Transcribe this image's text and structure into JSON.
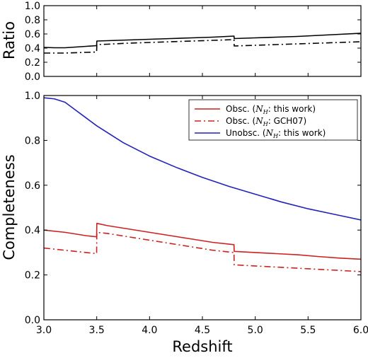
{
  "figure": {
    "xlabel": "Redshift",
    "x_ticks": [
      "3.0",
      "3.5",
      "4.0",
      "4.5",
      "5.0",
      "5.5",
      "6.0"
    ]
  },
  "chart_data": [
    {
      "type": "line",
      "panel": "top",
      "title": "",
      "xlabel": "Redshift",
      "ylabel": "Ratio",
      "xlim": [
        3.0,
        6.0
      ],
      "ylim": [
        0.0,
        1.0
      ],
      "y_ticks": [
        "0.0",
        "0.2",
        "0.4",
        "0.6",
        "0.8",
        "1.0"
      ],
      "grid": false,
      "series": [
        {
          "style": "solid",
          "color": "#000000",
          "x": [
            3.0,
            3.1,
            3.2,
            3.3,
            3.4,
            3.499,
            3.501,
            3.6,
            3.8,
            4.0,
            4.2,
            4.4,
            4.6,
            4.799,
            4.801,
            5.0,
            5.2,
            5.4,
            5.6,
            5.8,
            6.0
          ],
          "y": [
            0.41,
            0.405,
            0.405,
            0.415,
            0.425,
            0.435,
            0.5,
            0.505,
            0.515,
            0.525,
            0.535,
            0.545,
            0.555,
            0.57,
            0.535,
            0.545,
            0.555,
            0.565,
            0.58,
            0.595,
            0.61
          ]
        },
        {
          "style": "dashdot",
          "color": "#000000",
          "x": [
            3.0,
            3.2,
            3.4,
            3.499,
            3.501,
            3.6,
            3.8,
            4.0,
            4.2,
            4.4,
            4.6,
            4.799,
            4.801,
            5.0,
            5.2,
            5.4,
            5.6,
            5.8,
            6.0
          ],
          "y": [
            0.33,
            0.33,
            0.34,
            0.345,
            0.45,
            0.455,
            0.47,
            0.48,
            0.49,
            0.5,
            0.51,
            0.52,
            0.43,
            0.44,
            0.45,
            0.46,
            0.47,
            0.48,
            0.49
          ]
        }
      ]
    },
    {
      "type": "line",
      "panel": "bottom",
      "title": "",
      "xlabel": "Redshift",
      "ylabel": "Completeness",
      "xlim": [
        3.0,
        6.0
      ],
      "ylim": [
        0.0,
        1.0
      ],
      "y_ticks": [
        "0.0",
        "0.2",
        "0.4",
        "0.6",
        "0.8",
        "1.0"
      ],
      "grid": false,
      "legend_position": "top-right",
      "series": [
        {
          "name": "Obsc. (NH: this work)",
          "legend_prefix": "Obsc. (",
          "legend_sym": "N",
          "legend_sub": "H",
          "legend_suffix": ": this work)",
          "style": "solid",
          "color": "#cc2222",
          "x": [
            3.0,
            3.2,
            3.4,
            3.499,
            3.501,
            3.6,
            3.8,
            4.0,
            4.2,
            4.4,
            4.6,
            4.799,
            4.801,
            5.0,
            5.2,
            5.4,
            5.6,
            5.8,
            6.0
          ],
          "y": [
            0.4,
            0.39,
            0.375,
            0.37,
            0.43,
            0.42,
            0.405,
            0.39,
            0.375,
            0.36,
            0.345,
            0.335,
            0.305,
            0.3,
            0.295,
            0.29,
            0.282,
            0.275,
            0.27
          ]
        },
        {
          "name": "Obsc. (NH: GCH07)",
          "legend_prefix": "Obsc. (",
          "legend_sym": "N",
          "legend_sub": "H",
          "legend_suffix": ": GCH07)",
          "style": "dashdot",
          "color": "#cc2222",
          "x": [
            3.0,
            3.2,
            3.4,
            3.499,
            3.501,
            3.6,
            3.8,
            4.0,
            4.2,
            4.4,
            4.6,
            4.799,
            4.801,
            5.0,
            5.2,
            5.4,
            5.6,
            5.8,
            6.0
          ],
          "y": [
            0.32,
            0.31,
            0.3,
            0.295,
            0.39,
            0.385,
            0.37,
            0.355,
            0.34,
            0.325,
            0.31,
            0.3,
            0.245,
            0.24,
            0.235,
            0.23,
            0.225,
            0.22,
            0.215
          ]
        },
        {
          "name": "Unobsc. (NH: this work)",
          "legend_prefix": "Unobsc. (",
          "legend_sym": "N",
          "legend_sub": "H",
          "legend_suffix": ": this work)",
          "style": "solid",
          "color": "#2222bb",
          "x": [
            3.0,
            3.1,
            3.2,
            3.3,
            3.4,
            3.5,
            3.75,
            4.0,
            4.25,
            4.5,
            4.75,
            5.0,
            5.25,
            5.5,
            5.75,
            6.0
          ],
          "y": [
            0.99,
            0.985,
            0.97,
            0.935,
            0.9,
            0.865,
            0.79,
            0.73,
            0.68,
            0.635,
            0.595,
            0.56,
            0.525,
            0.495,
            0.47,
            0.445
          ]
        }
      ]
    }
  ]
}
